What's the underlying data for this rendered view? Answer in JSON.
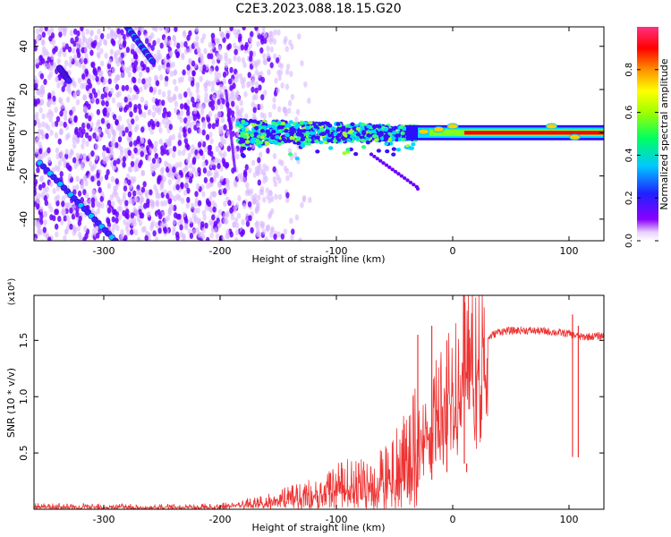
{
  "title": "C2E3.2023.088.18.15.G20",
  "chart_data": [
    {
      "type": "heatmap",
      "xlabel": "Height of straight line (km)",
      "ylabel": "Frequency (Hz)",
      "xlim": [
        -360,
        130
      ],
      "ylim": [
        -50,
        49
      ],
      "xticks": [
        -300,
        -200,
        -100,
        0,
        100
      ],
      "yticks": [
        -40,
        -20,
        0,
        20,
        40
      ],
      "colorbar": {
        "label": "Normalized spectral amplitude",
        "range": [
          0.0,
          1.0
        ],
        "ticks": [
          "0.0",
          "0.2",
          "0.4",
          "0.6",
          "0.8"
        ],
        "colormap": "rainbow (white-purple-blue-cyan-green-yellow-orange-red)"
      },
      "features": {
        "signal_ridge": {
          "x_range": [
            -185,
            130
          ],
          "frequency_hz": 0,
          "description": "strong tone near 0 Hz, widening to ±8 Hz for heights below -30 km"
        },
        "noise_region": {
          "x_range": [
            -360,
            -140
          ],
          "frequency_range": [
            -50,
            49
          ]
        },
        "diagonal_tracks": [
          {
            "from": [
              -355,
              -14
            ],
            "to": [
              -290,
              -50
            ]
          },
          {
            "from": [
              -280,
              49
            ],
            "to": [
              -258,
              33
            ]
          },
          {
            "from": [
              -338,
              30
            ],
            "to": [
              -330,
              24
            ]
          }
        ]
      },
      "colors": {
        "signal": "#ff0000",
        "noise": "#6a00ff",
        "faint_noise": "#d8b8ff"
      }
    },
    {
      "type": "line",
      "xlabel": "Height of straight line (km)",
      "ylabel": "SNR (10 * v/v)",
      "scale_label": "(x10⁴)",
      "xlim": [
        -360,
        130
      ],
      "ylim": [
        0,
        19000
      ],
      "xticks": [
        -300,
        -200,
        -100,
        0,
        100
      ],
      "yticks": [
        "0.5",
        "1.0",
        "1.5"
      ],
      "ytick_values": [
        5000,
        10000,
        15000
      ],
      "series": [
        {
          "color": "#ee3333",
          "x": [
            -360,
            -300,
            -250,
            -200,
            -180,
            -160,
            -140,
            -120,
            -100,
            -90,
            -80,
            -70,
            -60,
            -50,
            -40,
            -30,
            -25,
            -20,
            -15,
            -10,
            -5,
            0,
            5,
            10,
            15,
            20,
            25,
            30,
            40,
            60,
            80,
            100,
            110,
            130
          ],
          "y": [
            300,
            250,
            200,
            300,
            500,
            800,
            1200,
            1600,
            2300,
            2600,
            2600,
            2500,
            3200,
            4000,
            5000,
            6500,
            7600,
            8500,
            9200,
            10000,
            11000,
            12500,
            12900,
            13500,
            13700,
            13900,
            14300,
            15200,
            15800,
            15900,
            15800,
            15600,
            15300,
            15400
          ],
          "spikes": [
            [
              -30,
              15500
            ],
            [
              -18,
              16300
            ],
            [
              -5,
              15000
            ],
            [
              10,
              19000
            ],
            [
              12,
              3300
            ],
            [
              103,
              17300
            ],
            [
              108,
              16300
            ]
          ]
        }
      ]
    }
  ]
}
